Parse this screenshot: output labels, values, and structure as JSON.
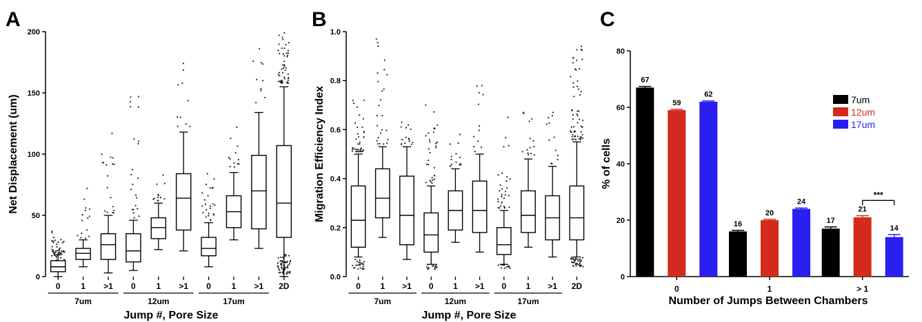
{
  "chart_data": [
    {
      "panel": "A",
      "type": "box",
      "ylabel": "Net Displacement (um)",
      "xlabel": "Jump #, Pore Size",
      "ylim": [
        0,
        200
      ],
      "yticks": [
        "0",
        "50",
        "100",
        "150",
        "200"
      ],
      "groups": [
        {
          "label": "7um",
          "members": [
            0,
            1,
            2
          ]
        },
        {
          "label": "12um",
          "members": [
            3,
            4,
            5
          ]
        },
        {
          "label": "17um",
          "members": [
            6,
            7,
            8
          ]
        }
      ],
      "boxes": [
        {
          "cat": "0",
          "whislo": 0,
          "q1": 4,
          "med": 8,
          "q3": 13,
          "whishi": 18,
          "outliers_lo": 19,
          "outliers_hi": 37,
          "n_out": 40
        },
        {
          "cat": "1",
          "whislo": 8,
          "q1": 14,
          "med": 19,
          "q3": 23,
          "whishi": 30,
          "outliers_lo": 31,
          "outliers_hi": 72,
          "n_out": 15
        },
        {
          "cat": ">1",
          "whislo": 3,
          "q1": 14,
          "med": 26,
          "q3": 35,
          "whishi": 50,
          "outliers_lo": 52,
          "outliers_hi": 117,
          "n_out": 18
        },
        {
          "cat": "0",
          "whislo": 5,
          "q1": 12,
          "med": 21,
          "q3": 35,
          "whishi": 46,
          "outliers_lo": 48,
          "outliers_hi": 147,
          "n_out": 22
        },
        {
          "cat": "1",
          "whislo": 22,
          "q1": 31,
          "med": 40,
          "q3": 48,
          "whishi": 60,
          "outliers_lo": 62,
          "outliers_hi": 83,
          "n_out": 12
        },
        {
          "cat": ">1",
          "whislo": 21,
          "q1": 38,
          "med": 64,
          "q3": 84,
          "whishi": 118,
          "outliers_lo": 122,
          "outliers_hi": 174,
          "n_out": 10
        },
        {
          "cat": "0",
          "whislo": 8,
          "q1": 17,
          "med": 23,
          "q3": 32,
          "whishi": 44,
          "outliers_lo": 45,
          "outliers_hi": 84,
          "n_out": 24
        },
        {
          "cat": "1",
          "whislo": 30,
          "q1": 40,
          "med": 53,
          "q3": 66,
          "whishi": 85,
          "outliers_lo": 88,
          "outliers_hi": 122,
          "n_out": 12
        },
        {
          "cat": ">1",
          "whislo": 23,
          "q1": 39,
          "med": 70,
          "q3": 99,
          "whishi": 134,
          "outliers_lo": 140,
          "outliers_hi": 186,
          "n_out": 10
        },
        {
          "cat": "2D",
          "whislo": 0,
          "q1": 32,
          "med": 60,
          "q3": 107,
          "whishi": 155,
          "outliers_lo": 158,
          "outliers_hi": 199,
          "n_out": 50
        }
      ]
    },
    {
      "panel": "B",
      "type": "box",
      "ylabel": "Migration Efficiency Index",
      "xlabel": "Jump #, Pore Size",
      "ylim": [
        0,
        1.0
      ],
      "yticks": [
        "0.0",
        "0.2",
        "0.4",
        "0.6",
        "0.8",
        "1.0"
      ],
      "groups": [
        {
          "label": "7um",
          "members": [
            0,
            1,
            2
          ]
        },
        {
          "label": "12um",
          "members": [
            3,
            4,
            5
          ]
        },
        {
          "label": "17um",
          "members": [
            6,
            7,
            8
          ]
        }
      ],
      "boxes": [
        {
          "cat": "0",
          "whislo": 0.08,
          "q1": 0.12,
          "med": 0.23,
          "q3": 0.37,
          "whishi": 0.5,
          "outliers_lo": 0.51,
          "outliers_hi": 0.72,
          "n_out": 40
        },
        {
          "cat": "1",
          "whislo": 0.16,
          "q1": 0.24,
          "med": 0.32,
          "q3": 0.44,
          "whishi": 0.53,
          "outliers_lo": 0.54,
          "outliers_hi": 0.97,
          "n_out": 25
        },
        {
          "cat": ">1",
          "whislo": 0.07,
          "q1": 0.13,
          "med": 0.25,
          "q3": 0.41,
          "whishi": 0.53,
          "outliers_lo": 0.54,
          "outliers_hi": 0.63,
          "n_out": 15
        },
        {
          "cat": "0",
          "whislo": 0.05,
          "q1": 0.1,
          "med": 0.17,
          "q3": 0.26,
          "whishi": 0.37,
          "outliers_lo": 0.38,
          "outliers_hi": 0.7,
          "n_out": 30
        },
        {
          "cat": "1",
          "whislo": 0.14,
          "q1": 0.19,
          "med": 0.27,
          "q3": 0.35,
          "whishi": 0.44,
          "outliers_lo": 0.45,
          "outliers_hi": 0.58,
          "n_out": 15
        },
        {
          "cat": ">1",
          "whislo": 0.1,
          "q1": 0.18,
          "med": 0.27,
          "q3": 0.39,
          "whishi": 0.5,
          "outliers_lo": 0.51,
          "outliers_hi": 0.78,
          "n_out": 12
        },
        {
          "cat": "0",
          "whislo": 0.05,
          "q1": 0.09,
          "med": 0.13,
          "q3": 0.2,
          "whishi": 0.27,
          "outliers_lo": 0.28,
          "outliers_hi": 0.65,
          "n_out": 30
        },
        {
          "cat": "1",
          "whislo": 0.12,
          "q1": 0.18,
          "med": 0.25,
          "q3": 0.35,
          "whishi": 0.48,
          "outliers_lo": 0.49,
          "outliers_hi": 0.67,
          "n_out": 14
        },
        {
          "cat": ">1",
          "whislo": 0.08,
          "q1": 0.15,
          "med": 0.24,
          "q3": 0.33,
          "whishi": 0.45,
          "outliers_lo": 0.46,
          "outliers_hi": 0.67,
          "n_out": 12
        },
        {
          "cat": "2D",
          "whislo": 0.08,
          "q1": 0.15,
          "med": 0.24,
          "q3": 0.37,
          "whishi": 0.55,
          "outliers_lo": 0.56,
          "outliers_hi": 0.94,
          "n_out": 60
        }
      ]
    },
    {
      "panel": "C",
      "type": "bar",
      "ylabel": "% of cells",
      "xlabel": "Number of Jumps Between Chambers",
      "ylim": [
        0,
        80
      ],
      "yticks": [
        "0",
        "20",
        "40",
        "60",
        "80"
      ],
      "categories": [
        "0",
        "1",
        "> 1"
      ],
      "series": [
        {
          "name": "7um",
          "color": "#000000",
          "values": [
            67,
            16,
            17
          ],
          "labels": [
            "67",
            "16",
            "17"
          ],
          "err": [
            0.4,
            0.4,
            0.6
          ]
        },
        {
          "name": "12um",
          "color": "#d42a1e",
          "values": [
            59,
            20,
            21
          ],
          "labels": [
            "59",
            "20",
            "21"
          ],
          "err": [
            0.3,
            0.3,
            0.6
          ]
        },
        {
          "name": "17um",
          "color": "#2a1ef0",
          "values": [
            62,
            24,
            14
          ],
          "labels": [
            "62",
            "24",
            "14"
          ],
          "err": [
            0.3,
            0.3,
            0.9
          ]
        }
      ],
      "significance": {
        "label": "***",
        "category_index": 2,
        "from_series": 1,
        "to_series": 2
      },
      "legend_position": "top-right"
    }
  ]
}
